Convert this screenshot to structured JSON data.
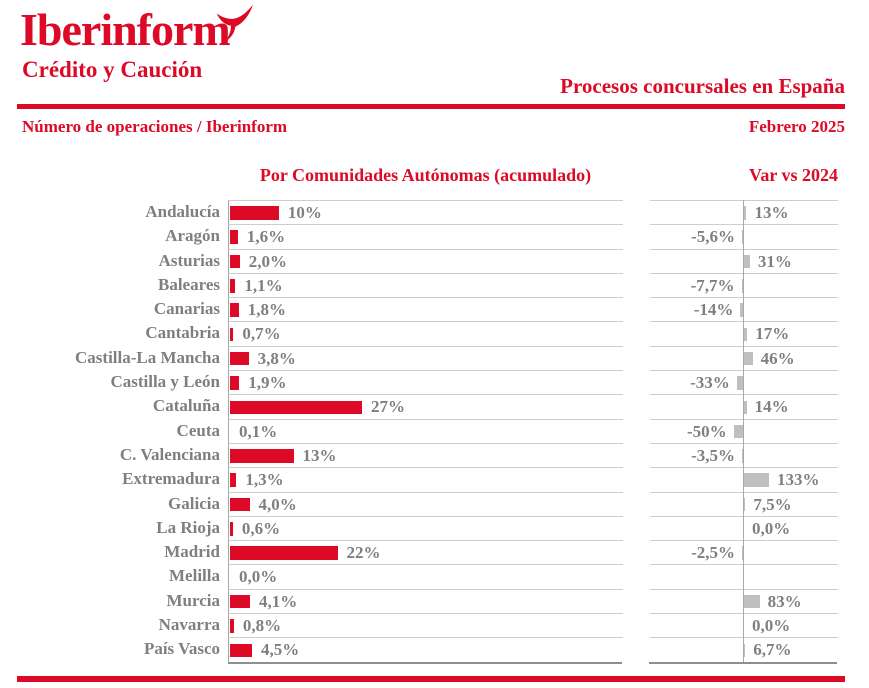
{
  "header": {
    "logo_text": "Iberinform",
    "logo_subtext": "Crédito y Caución",
    "title": "Procesos concursales en España",
    "subtitle_left": "Número de operaciones / Iberinform",
    "subtitle_right": "Febrero 2025"
  },
  "colors": {
    "red": "#DC0A26",
    "gray_text": "#7F7F7F",
    "gray_bar": "#BFBFBF",
    "row_line": "#CDCDCD",
    "axis_line": "#A8A8A8",
    "bottom_line": "#8F8F8F"
  },
  "chart_data": [
    {
      "type": "bar",
      "orientation": "horizontal",
      "title": "Por Comunidades Autónomas (acumulado)",
      "unit": "%",
      "bar_color": "#DC0A26",
      "xlim": [
        0,
        27
      ],
      "grid": "row-separators",
      "categories": [
        "Andalucía",
        "Aragón",
        "Asturias",
        "Baleares",
        "Canarias",
        "Cantabria",
        "Castilla-La Mancha",
        "Castilla y León",
        "Cataluña",
        "Ceuta",
        "C. Valenciana",
        "Extremadura",
        "Galicia",
        "La Rioja",
        "Madrid",
        "Melilla",
        "Murcia",
        "Navarra",
        "País Vasco"
      ],
      "values": [
        10,
        1.6,
        2.0,
        1.1,
        1.8,
        0.7,
        3.8,
        1.9,
        27,
        0.1,
        13,
        1.3,
        4.0,
        0.6,
        22,
        0.0,
        4.1,
        0.8,
        4.5
      ],
      "labels": [
        "10%",
        "1,6%",
        "2,0%",
        "1,1%",
        "1,8%",
        "0,7%",
        "3,8%",
        "1,9%",
        "27%",
        "0,1%",
        "13%",
        "1,3%",
        "4,0%",
        "0,6%",
        "22%",
        "0,0%",
        "4,1%",
        "0,8%",
        "4,5%"
      ]
    },
    {
      "type": "bar",
      "orientation": "horizontal",
      "title": "Var vs 2024",
      "unit": "%",
      "bar_color": "#BFBFBF",
      "xlim": [
        -50,
        133
      ],
      "grid": "row-separators",
      "categories": [
        "Andalucía",
        "Aragón",
        "Asturias",
        "Baleares",
        "Canarias",
        "Cantabria",
        "Castilla-La Mancha",
        "Castilla y León",
        "Cataluña",
        "Ceuta",
        "C. Valenciana",
        "Extremadura",
        "Galicia",
        "La Rioja",
        "Madrid",
        "Melilla",
        "Murcia",
        "Navarra",
        "País Vasco"
      ],
      "values": [
        13,
        -5.6,
        31,
        -7.7,
        -14,
        17,
        46,
        -33,
        14,
        -50,
        -3.5,
        133,
        7.5,
        0.0,
        -2.5,
        null,
        83,
        0.0,
        6.7
      ],
      "labels": [
        "13%",
        "-5,6%",
        "31%",
        "-7,7%",
        "-14%",
        "17%",
        "46%",
        "-33%",
        "14%",
        "-50%",
        "-3,5%",
        "133%",
        "7,5%",
        "0,0%",
        "-2,5%",
        "",
        "83%",
        "0,0%",
        "6,7%"
      ]
    }
  ]
}
